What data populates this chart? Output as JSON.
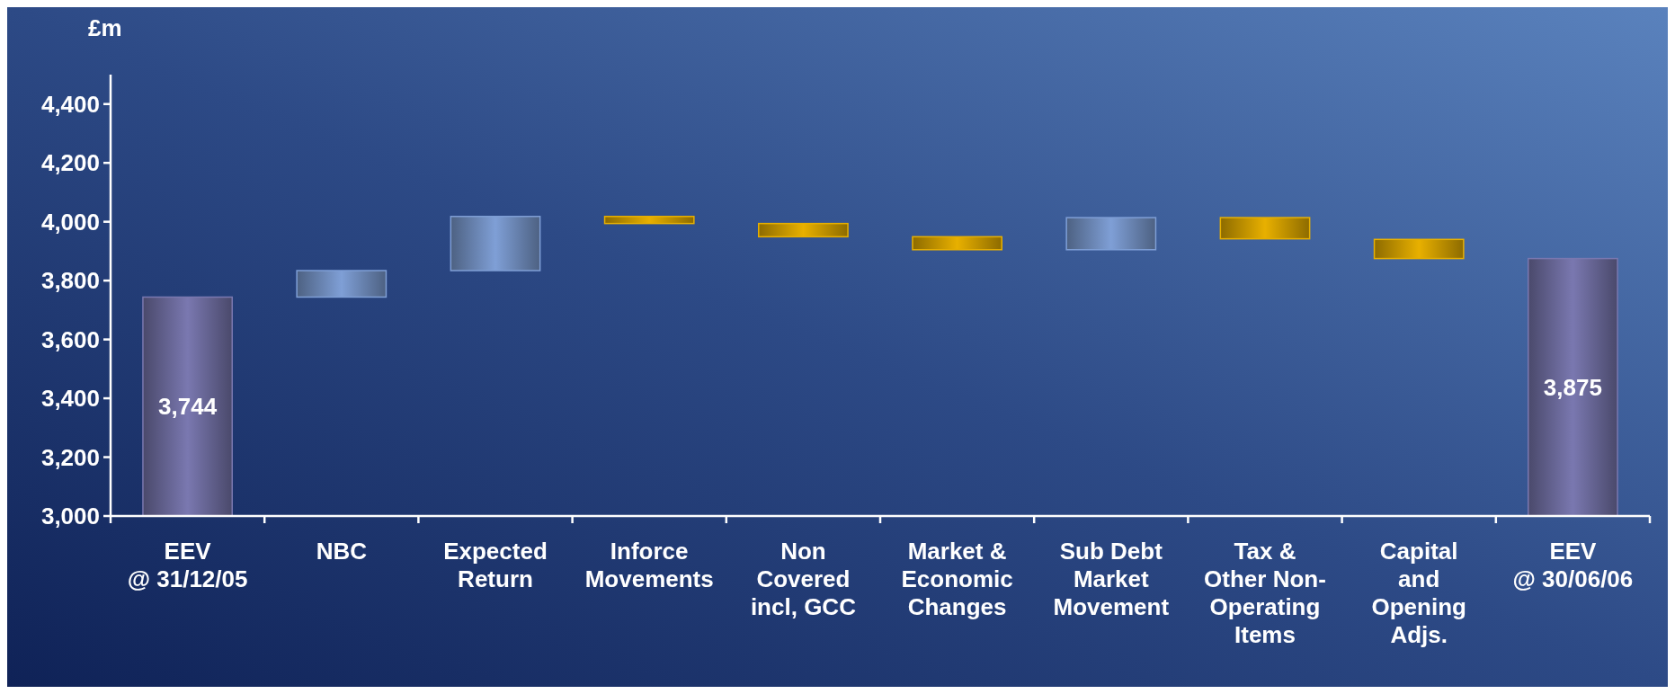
{
  "chart_data": {
    "type": "bar",
    "ylabel": "£m",
    "categories": [
      "EEV\n@ 31/12/05",
      "NBC",
      "Expected\nReturn",
      "Inforce\nMovements",
      "Non\nCovered\nincl, GCC",
      "Market &\nEconomic\nChanges",
      "Sub Debt\nMarket\nMovement",
      "Tax &\nOther Non-\nOperating\nItems",
      "Capital\nand\nOpening\nAdjs.",
      "EEV\n@ 30/06/06"
    ],
    "values": [
      3744,
      90,
      184,
      -24,
      -45,
      -44,
      109,
      -72,
      -65,
      3875
    ],
    "base": [
      null,
      3744,
      3834,
      4018,
      3994,
      3949,
      3905,
      4014,
      3940,
      null
    ],
    "colors": [
      "#7a78b0",
      "#7f9fd6",
      "#7f9fd6",
      "#e8b000",
      "#e8b000",
      "#e8b000",
      "#7f9fd6",
      "#e8b000",
      "#e8b000",
      "#7a78b0"
    ],
    "value_labels": [
      "3,744",
      null,
      null,
      null,
      null,
      null,
      null,
      null,
      null,
      "3,875"
    ],
    "ylim": [
      3000,
      4500
    ],
    "yticks": [
      {
        "value": 3000,
        "label": "3,000"
      },
      {
        "value": 3200,
        "label": "3,200"
      },
      {
        "value": 3400,
        "label": "3,400"
      },
      {
        "value": 3600,
        "label": "3,600"
      },
      {
        "value": 3800,
        "label": "3,800"
      },
      {
        "value": 4000,
        "label": "4,000"
      },
      {
        "value": 4200,
        "label": "4,200"
      },
      {
        "value": 4400,
        "label": "4,400"
      }
    ],
    "grid": false
  }
}
